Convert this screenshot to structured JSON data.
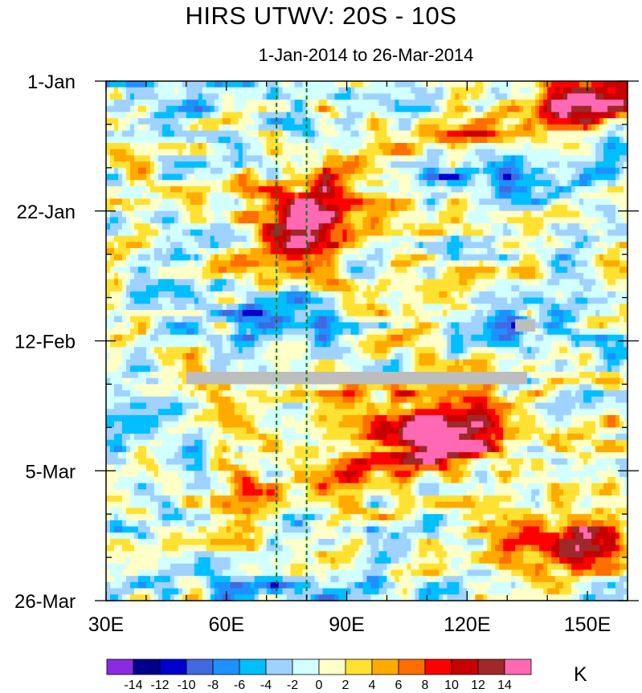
{
  "chart_data": {
    "type": "heatmap",
    "title": "HIRS UTWV: 20S - 10S",
    "subtitle": "1-Jan-2014 to 26-Mar-2014",
    "x_axis": {
      "range": [
        30,
        160
      ],
      "units": "degrees East longitude",
      "major_ticks": [
        30,
        60,
        90,
        120,
        150
      ],
      "major_labels": [
        "30E",
        "60E",
        "90E",
        "120E",
        "150E"
      ],
      "minor_step": 10
    },
    "y_axis": {
      "range_days": [
        0,
        84
      ],
      "orientation": "time increases downward",
      "major_ticks_days": [
        0,
        21,
        42,
        63,
        84
      ],
      "major_labels": [
        "1-Jan",
        "22-Jan",
        "12-Feb",
        "5-Mar",
        "26-Mar"
      ],
      "minor_step_days": 7
    },
    "reference_lines": {
      "style": "dashed green vertical",
      "longitudes": [
        72.5,
        80
      ]
    },
    "missing_data_color": "#bdbdbd",
    "missing_data": [
      {
        "lon_range": [
          50,
          135
        ],
        "day_range": [
          47,
          49
        ]
      },
      {
        "lon_range": [
          132,
          137
        ],
        "day_range": [
          38.5,
          40.5
        ]
      }
    ],
    "colorbar": {
      "unit": "K",
      "tick_labels": [
        "-14",
        "-12",
        "-10",
        "-8",
        "-6",
        "-4",
        "-2",
        "0",
        "2",
        "4",
        "6",
        "8",
        "10",
        "12",
        "14"
      ],
      "colors": [
        "#8a2be2",
        "#00008b",
        "#0000cd",
        "#4169e1",
        "#1e90ff",
        "#00bfff",
        "#a0d2ff",
        "#d2ffff",
        "#ffffc8",
        "#ffe132",
        "#ffaa00",
        "#ff6e00",
        "#ff0000",
        "#c80000",
        "#a02828",
        "#ff69b4"
      ]
    },
    "anomaly_features": [
      {
        "name": "warm band Jan",
        "kind": "band",
        "lon0": 88,
        "day0": 14,
        "lon1": 160,
        "day1": 2,
        "width_days": 3.5,
        "value": 6
      },
      {
        "name": "warm core mid Jan",
        "kind": "blob",
        "lon": 80,
        "day": 22,
        "r_lon": 9,
        "r_day": 5,
        "value": 11
      },
      {
        "name": "warm region mid Jan",
        "kind": "blob",
        "lon": 80,
        "day": 24,
        "r_lon": 16,
        "r_day": 8,
        "value": 6
      },
      {
        "name": "warm NE corner",
        "kind": "blob",
        "lon": 150,
        "day": 3,
        "r_lon": 13,
        "r_day": 3.5,
        "value": 10
      },
      {
        "name": "warm Feb-Mar core",
        "kind": "blob",
        "lon": 114,
        "day": 56,
        "r_lon": 11,
        "r_day": 5,
        "value": 11
      },
      {
        "name": "warm Feb-Mar region",
        "kind": "blob",
        "lon": 110,
        "day": 55,
        "r_lon": 21,
        "r_day": 8,
        "value": 6
      },
      {
        "name": "warm band Mar",
        "kind": "band",
        "lon0": 60,
        "day0": 68,
        "lon1": 125,
        "day1": 58,
        "width_days": 3,
        "value": 5
      },
      {
        "name": "warm SE corner",
        "kind": "blob",
        "lon": 150,
        "day": 75,
        "r_lon": 11,
        "r_day": 3,
        "value": 12
      },
      {
        "name": "warm late Mar",
        "kind": "blob",
        "lon": 140,
        "day": 77,
        "r_lon": 18,
        "r_day": 5,
        "value": 6
      },
      {
        "name": "cold early Jan",
        "kind": "blob",
        "lon": 50,
        "day": 3,
        "r_lon": 18,
        "r_day": 4,
        "value": -6
      },
      {
        "name": "cold mid Jan east",
        "kind": "blob",
        "lon": 126,
        "day": 15,
        "r_lon": 19,
        "r_day": 5,
        "value": -6
      },
      {
        "name": "cold Feb core",
        "kind": "blob",
        "lon": 72,
        "day": 38,
        "r_lon": 15,
        "r_day": 4,
        "value": -8
      },
      {
        "name": "cold Feb east",
        "kind": "blob",
        "lon": 128,
        "day": 40,
        "r_lon": 14,
        "r_day": 3.5,
        "value": -6
      },
      {
        "name": "cold late Mar",
        "kind": "blob",
        "lon": 80,
        "day": 82,
        "r_lon": 22,
        "r_day": 3,
        "value": -6
      }
    ]
  }
}
